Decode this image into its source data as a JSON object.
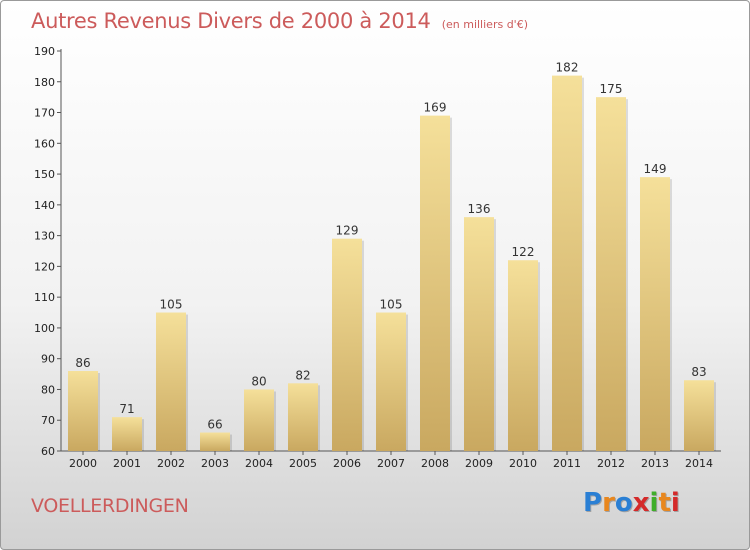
{
  "header": {
    "title": "Autres Revenus Divers de 2000 à 2014",
    "subtitle": "(en milliers d'€)"
  },
  "footer": {
    "commune": "VOELLERDINGEN",
    "brand": "Proxiti",
    "brand_colors": [
      "#2a7fd4",
      "#e8871e",
      "#2a7fd4",
      "#d42a2a",
      "#3fae2a",
      "#e8871e",
      "#d42a2a"
    ]
  },
  "chart_data": {
    "type": "bar",
    "title": "Autres Revenus Divers de 2000 à 2014",
    "subtitle": "(en milliers d'€)",
    "xlabel": "",
    "ylabel": "",
    "categories": [
      "2000",
      "2001",
      "2002",
      "2003",
      "2004",
      "2005",
      "2006",
      "2007",
      "2008",
      "2009",
      "2010",
      "2011",
      "2012",
      "2013",
      "2014"
    ],
    "values": [
      86,
      71,
      105,
      66,
      80,
      82,
      129,
      105,
      169,
      136,
      122,
      182,
      175,
      149,
      83
    ],
    "ylim": [
      60,
      190
    ],
    "yticks": [
      60,
      70,
      80,
      90,
      100,
      110,
      120,
      130,
      140,
      150,
      160,
      170,
      180,
      190
    ],
    "grid": false,
    "data_labels": true,
    "bar_color_top": "#f5e09a",
    "bar_color_bottom": "#c9a860",
    "axis_color": "#555555"
  }
}
